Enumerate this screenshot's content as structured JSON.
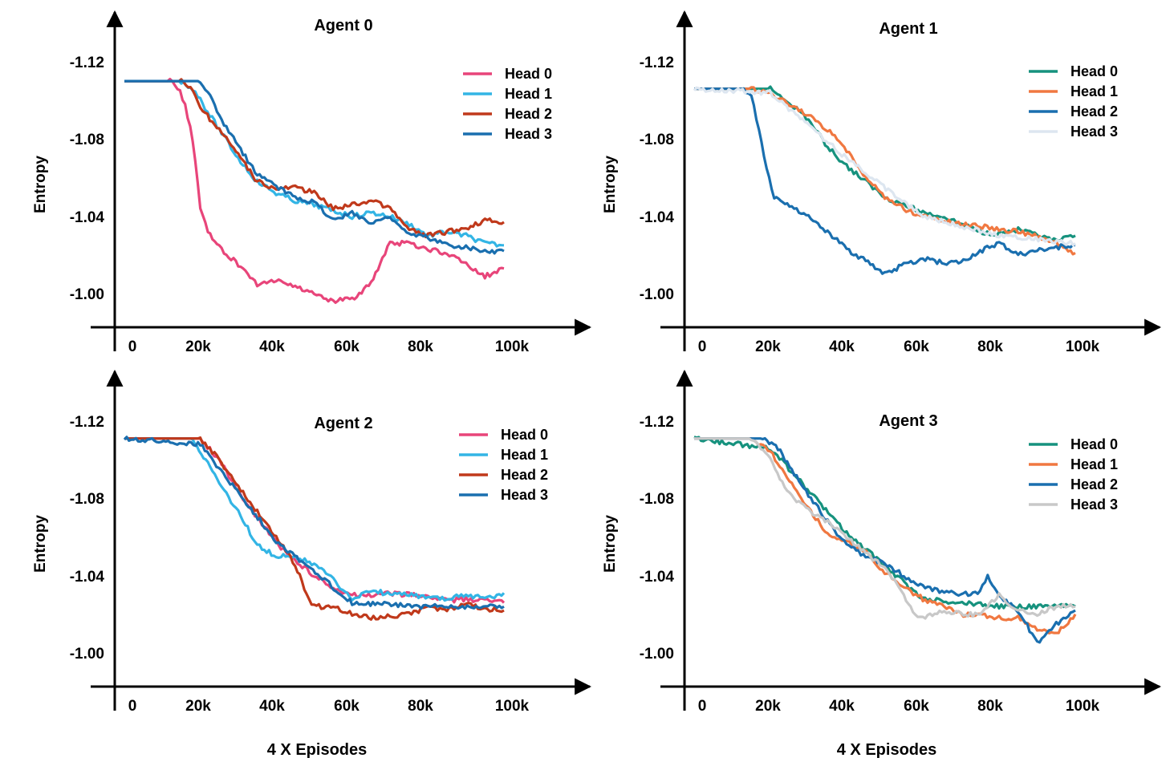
{
  "figure": {
    "bottom_labels": [
      "4 X Episodes",
      "4 X Episodes"
    ]
  },
  "chart_data": [
    {
      "type": "line",
      "title": "Agent 0",
      "ylabel": "Entropy",
      "xlabel": "",
      "xticks": [
        "0",
        "20k",
        "40k",
        "60k",
        "80k",
        "100k"
      ],
      "yticks": [
        "-1.12",
        "-1.08",
        "-1.04",
        "-1.00"
      ],
      "xlim": [
        0,
        105000
      ],
      "ylim": [
        -1.135,
        -0.983
      ],
      "y_inverted": true,
      "grid": false,
      "legend": "top-right",
      "series": [
        {
          "name": "Head 0",
          "color": "#e8457a",
          "x": [
            0,
            12000,
            14000,
            16000,
            18000,
            20000,
            22000,
            25000,
            30000,
            35000,
            40000,
            45000,
            50000,
            55000,
            60000,
            65000,
            68000,
            70000,
            75000,
            80000,
            85000,
            90000,
            95000,
            100000
          ],
          "y": [
            -1.11,
            -1.11,
            -1.107,
            -1.098,
            -1.08,
            -1.045,
            -1.032,
            -1.024,
            -1.015,
            -1.005,
            -1.007,
            -1.004,
            -1.0,
            -0.996,
            -0.997,
            -1.005,
            -1.018,
            -1.026,
            -1.026,
            -1.023,
            -1.021,
            -1.015,
            -1.009,
            -1.013
          ]
        },
        {
          "name": "Head 1",
          "color": "#33b5e5",
          "x": [
            0,
            15000,
            18000,
            20000,
            25000,
            30000,
            35000,
            40000,
            45000,
            50000,
            55000,
            60000,
            65000,
            70000,
            75000,
            80000,
            85000,
            90000,
            95000,
            100000
          ],
          "y": [
            -1.11,
            -1.11,
            -1.106,
            -1.1,
            -1.085,
            -1.07,
            -1.058,
            -1.052,
            -1.048,
            -1.046,
            -1.043,
            -1.04,
            -1.042,
            -1.04,
            -1.036,
            -1.03,
            -1.032,
            -1.03,
            -1.026,
            -1.025
          ]
        },
        {
          "name": "Head 2",
          "color": "#c0391b",
          "x": [
            0,
            15000,
            18000,
            20000,
            25000,
            30000,
            35000,
            40000,
            45000,
            50000,
            55000,
            60000,
            65000,
            70000,
            75000,
            80000,
            85000,
            90000,
            95000,
            100000
          ],
          "y": [
            -1.11,
            -1.11,
            -1.105,
            -1.096,
            -1.085,
            -1.072,
            -1.058,
            -1.054,
            -1.055,
            -1.052,
            -1.044,
            -1.046,
            -1.048,
            -1.044,
            -1.033,
            -1.03,
            -1.032,
            -1.034,
            -1.038,
            -1.037
          ]
        },
        {
          "name": "Head 3",
          "color": "#1a6faf",
          "x": [
            0,
            20000,
            22000,
            25000,
            30000,
            35000,
            40000,
            45000,
            50000,
            55000,
            60000,
            65000,
            70000,
            75000,
            80000,
            85000,
            90000,
            95000,
            100000
          ],
          "y": [
            -1.11,
            -1.11,
            -1.104,
            -1.092,
            -1.076,
            -1.062,
            -1.055,
            -1.05,
            -1.047,
            -1.038,
            -1.042,
            -1.036,
            -1.04,
            -1.03,
            -1.029,
            -1.025,
            -1.024,
            -1.022,
            -1.022
          ]
        }
      ]
    },
    {
      "type": "line",
      "title": "Agent 1",
      "ylabel": "Entropy",
      "xlabel": "",
      "xticks": [
        "0",
        "20k",
        "40k",
        "60k",
        "80k",
        "100k"
      ],
      "yticks": [
        "-1.12",
        "-1.08",
        "-1.04",
        "-1.00"
      ],
      "xlim": [
        0,
        105000
      ],
      "ylim": [
        -1.135,
        -0.983
      ],
      "y_inverted": true,
      "grid": false,
      "legend": "top-right",
      "series": [
        {
          "name": "Head 0",
          "color": "#16927e",
          "x": [
            0,
            20000,
            25000,
            30000,
            35000,
            40000,
            45000,
            50000,
            55000,
            60000,
            65000,
            70000,
            75000,
            80000,
            85000,
            90000,
            95000,
            100000
          ],
          "y": [
            -1.106,
            -1.106,
            -1.099,
            -1.09,
            -1.076,
            -1.066,
            -1.058,
            -1.05,
            -1.046,
            -1.042,
            -1.04,
            -1.036,
            -1.032,
            -1.031,
            -1.033,
            -1.03,
            -1.027,
            -1.03
          ]
        },
        {
          "name": "Head 1",
          "color": "#f07841",
          "x": [
            0,
            15000,
            20000,
            25000,
            30000,
            35000,
            40000,
            45000,
            50000,
            55000,
            60000,
            65000,
            70000,
            75000,
            80000,
            85000,
            90000,
            95000,
            100000
          ],
          "y": [
            -1.106,
            -1.106,
            -1.104,
            -1.098,
            -1.092,
            -1.085,
            -1.074,
            -1.06,
            -1.05,
            -1.044,
            -1.04,
            -1.038,
            -1.036,
            -1.035,
            -1.033,
            -1.032,
            -1.03,
            -1.026,
            -1.021
          ]
        },
        {
          "name": "Head 2",
          "color": "#1a6faf",
          "x": [
            0,
            13000,
            15000,
            17000,
            19000,
            21000,
            25000,
            30000,
            35000,
            40000,
            45000,
            50000,
            55000,
            60000,
            65000,
            70000,
            75000,
            80000,
            85000,
            90000,
            95000,
            100000
          ],
          "y": [
            -1.106,
            -1.106,
            -1.102,
            -1.085,
            -1.065,
            -1.05,
            -1.046,
            -1.04,
            -1.032,
            -1.023,
            -1.017,
            -1.01,
            -1.015,
            -1.018,
            -1.016,
            -1.016,
            -1.022,
            -1.026,
            -1.02,
            -1.022,
            -1.024,
            -1.025
          ]
        },
        {
          "name": "Head 3",
          "color": "#dde6f0",
          "x": [
            0,
            20000,
            40000,
            60000,
            80000,
            100000
          ],
          "y": [
            -1.106,
            -1.104,
            -1.07,
            -1.04,
            -1.03,
            -1.026
          ]
        }
      ]
    },
    {
      "type": "line",
      "title": "Agent 2",
      "ylabel": "Entropy",
      "xlabel": "",
      "xticks": [
        "0",
        "20k",
        "40k",
        "60k",
        "80k",
        "100k"
      ],
      "yticks": [
        "-1.12",
        "-1.08",
        "-1.04",
        "-1.00"
      ],
      "xlim": [
        0,
        105000
      ],
      "ylim": [
        -1.135,
        -0.983
      ],
      "y_inverted": true,
      "grid": false,
      "legend": "top-right",
      "series": [
        {
          "name": "Head 0",
          "color": "#e8457a",
          "x": [
            0,
            20000,
            25000,
            30000,
            35000,
            40000,
            45000,
            50000,
            55000,
            60000,
            65000,
            70000,
            75000,
            80000,
            85000,
            90000,
            95000,
            100000
          ],
          "y": [
            -1.111,
            -1.111,
            -1.1,
            -1.084,
            -1.07,
            -1.057,
            -1.048,
            -1.04,
            -1.034,
            -1.03,
            -1.03,
            -1.031,
            -1.03,
            -1.029,
            -1.027,
            -1.028,
            -1.027,
            -1.026
          ]
        },
        {
          "name": "Head 1",
          "color": "#33b5e5",
          "x": [
            0,
            18000,
            22000,
            25000,
            30000,
            35000,
            40000,
            45000,
            50000,
            55000,
            60000,
            65000,
            70000,
            75000,
            80000,
            85000,
            90000,
            95000,
            100000
          ],
          "y": [
            -1.111,
            -1.111,
            -1.098,
            -1.088,
            -1.073,
            -1.056,
            -1.05,
            -1.05,
            -1.046,
            -1.038,
            -1.028,
            -1.033,
            -1.03,
            -1.03,
            -1.029,
            -1.028,
            -1.03,
            -1.028,
            -1.031
          ]
        },
        {
          "name": "Head 2",
          "color": "#c0391b",
          "x": [
            0,
            20000,
            25000,
            30000,
            35000,
            40000,
            45000,
            48000,
            50000,
            55000,
            60000,
            65000,
            70000,
            75000,
            80000,
            85000,
            90000,
            95000,
            100000
          ],
          "y": [
            -1.111,
            -1.111,
            -1.1,
            -1.086,
            -1.073,
            -1.06,
            -1.046,
            -1.03,
            -1.024,
            -1.024,
            -1.02,
            -1.018,
            -1.019,
            -1.02,
            -1.024,
            -1.022,
            -1.025,
            -1.023,
            -1.022
          ]
        },
        {
          "name": "Head 3",
          "color": "#1a6faf",
          "x": [
            0,
            20000,
            40000,
            60000,
            80000,
            100000
          ],
          "y": [
            -1.111,
            -1.108,
            -1.058,
            -1.026,
            -1.024,
            -1.024
          ]
        }
      ]
    },
    {
      "type": "line",
      "title": "Agent 3",
      "ylabel": "Entropy",
      "xlabel": "",
      "xticks": [
        "0",
        "20k",
        "40k",
        "60k",
        "80k",
        "100k"
      ],
      "yticks": [
        "-1.12",
        "-1.08",
        "-1.04",
        "-1.00"
      ],
      "xlim": [
        0,
        105000
      ],
      "ylim": [
        -1.135,
        -0.983
      ],
      "y_inverted": true,
      "grid": false,
      "legend": "top-right",
      "series": [
        {
          "name": "Head 0",
          "color": "#16927e",
          "x": [
            0,
            20000,
            40000,
            60000,
            80000,
            100000
          ],
          "y": [
            -1.111,
            -1.106,
            -1.062,
            -1.028,
            -1.024,
            -1.024
          ]
        },
        {
          "name": "Head 1",
          "color": "#f07841",
          "x": [
            0,
            15000,
            20000,
            25000,
            30000,
            35000,
            40000,
            45000,
            50000,
            55000,
            60000,
            65000,
            70000,
            75000,
            80000,
            85000,
            90000,
            95000,
            100000
          ],
          "y": [
            -1.111,
            -1.111,
            -1.104,
            -1.09,
            -1.075,
            -1.062,
            -1.058,
            -1.052,
            -1.042,
            -1.034,
            -1.028,
            -1.024,
            -1.02,
            -1.02,
            -1.018,
            -1.018,
            -1.012,
            -1.01,
            -1.02
          ]
        },
        {
          "name": "Head 2",
          "color": "#1a6faf",
          "x": [
            0,
            18000,
            22000,
            25000,
            30000,
            35000,
            40000,
            45000,
            50000,
            55000,
            60000,
            65000,
            70000,
            75000,
            77000,
            80000,
            85000,
            88000,
            90000,
            95000,
            100000
          ],
          "y": [
            -1.111,
            -1.111,
            -1.106,
            -1.096,
            -1.082,
            -1.068,
            -1.056,
            -1.05,
            -1.046,
            -1.04,
            -1.034,
            -1.032,
            -1.03,
            -1.032,
            -1.04,
            -1.03,
            -1.022,
            -1.012,
            -1.005,
            -1.015,
            -1.022
          ]
        },
        {
          "name": "Head 3",
          "color": "#c8c8c8",
          "x": [
            0,
            15000,
            20000,
            25000,
            30000,
            35000,
            40000,
            45000,
            50000,
            55000,
            58000,
            60000,
            65000,
            70000,
            75000,
            80000,
            85000,
            90000,
            95000,
            100000
          ],
          "y": [
            -1.111,
            -1.111,
            -1.1,
            -1.082,
            -1.074,
            -1.068,
            -1.06,
            -1.052,
            -1.044,
            -1.03,
            -1.02,
            -1.018,
            -1.022,
            -1.02,
            -1.02,
            -1.03,
            -1.022,
            -1.02,
            -1.024,
            -1.024
          ]
        }
      ]
    }
  ]
}
